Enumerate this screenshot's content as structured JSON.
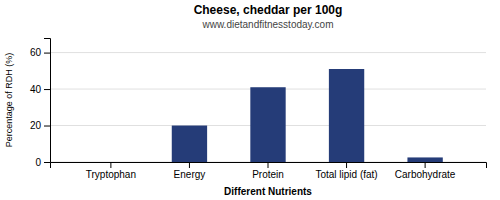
{
  "chart_data": {
    "type": "bar",
    "title": "Cheese, cheddar per 100g",
    "subtitle": "www.dietandfitnesstoday.com",
    "xlabel": "Different Nutrients",
    "ylabel": "Percentage of RDH (%)",
    "categories": [
      "Tryptophan",
      "Energy",
      "Protein",
      "Total lipid (fat)",
      "Carbohydrate"
    ],
    "values": [
      0,
      20,
      41,
      51,
      2.5
    ],
    "color": "#253C78",
    "ylim": [
      0,
      68
    ],
    "yticks": [
      0,
      20,
      40,
      60
    ],
    "grid": true
  }
}
